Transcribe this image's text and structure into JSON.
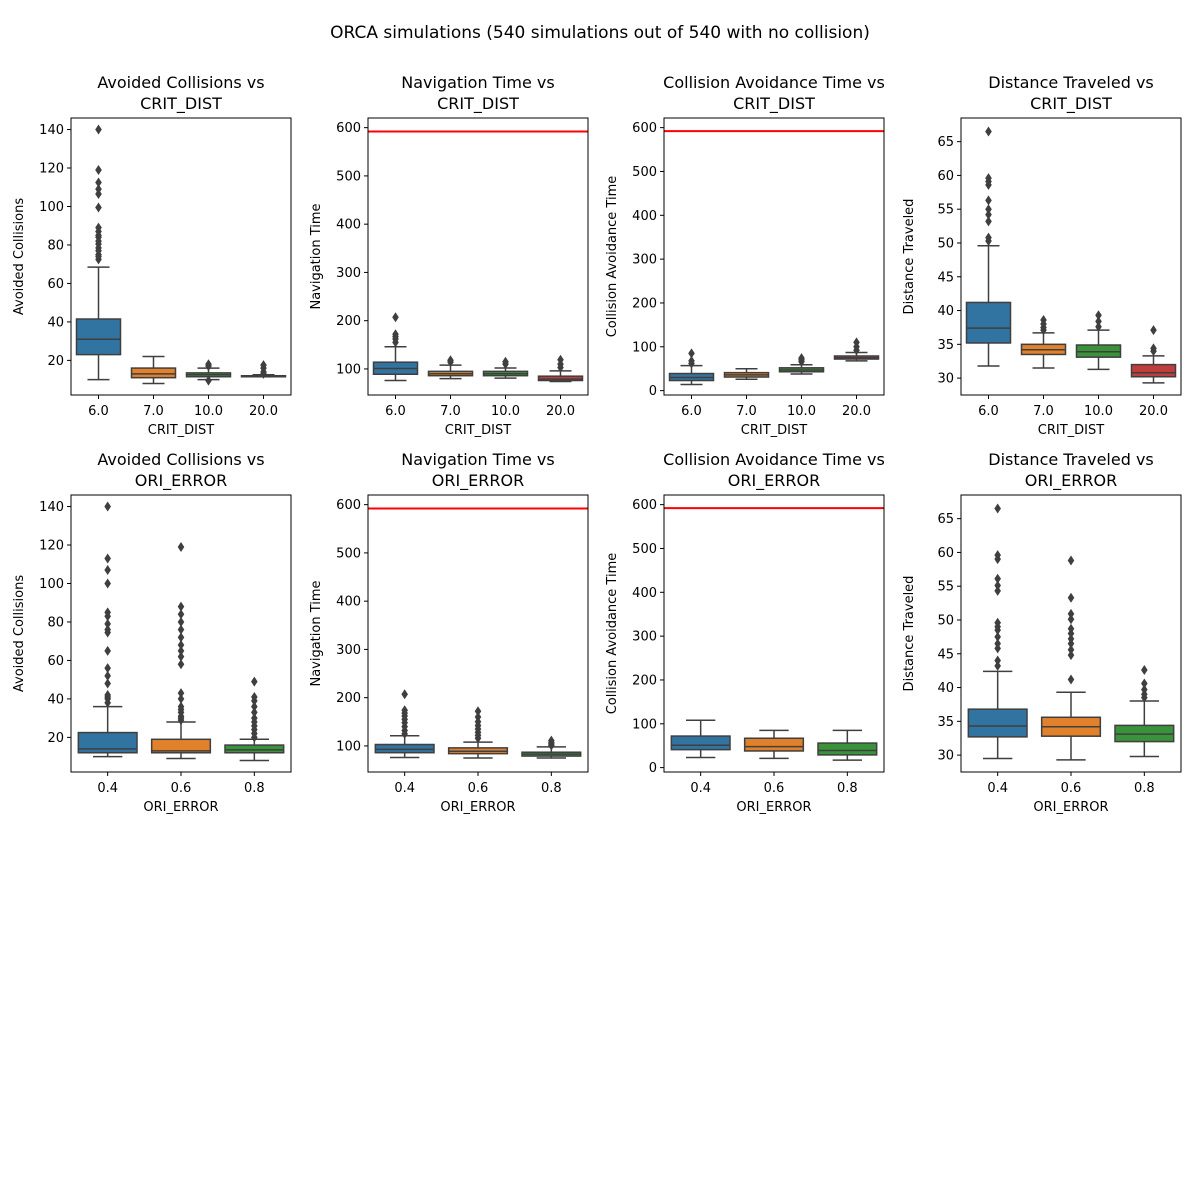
{
  "figure": {
    "suptitle": "ORCA simulations (540 simulations out of 540 with no collision)"
  },
  "colors": {
    "series": [
      "#3274a1",
      "#e1812c",
      "#3a923a",
      "#c03d3e"
    ],
    "box_edge": "#3f3f3f",
    "reference_line": "#ff0000"
  },
  "chart_data": [
    {
      "type": "box",
      "title": [
        "Avoided Collisions vs",
        "CRIT_DIST"
      ],
      "xlabel": "CRIT_DIST",
      "ylabel": "Avoided Collisions",
      "categories": [
        "6.0",
        "7.0",
        "10.0",
        "20.0"
      ],
      "ylim": [
        2,
        146
      ],
      "yticks": [
        20,
        40,
        60,
        80,
        100,
        120,
        140
      ],
      "reference_line": null,
      "boxes": [
        {
          "whislo": 10,
          "q1": 23,
          "med": 31,
          "q3": 41.5,
          "whishi": 68.5,
          "fliers": [
            72.5,
            74,
            75,
            77,
            78.5,
            80.5,
            82,
            84,
            85,
            87,
            89,
            99.5,
            106.5,
            109,
            112.5,
            119,
            140
          ]
        },
        {
          "whislo": 8,
          "q1": 11,
          "med": 13,
          "q3": 16,
          "whishi": 22,
          "fliers": []
        },
        {
          "whislo": 10,
          "q1": 11.5,
          "med": 12.5,
          "q3": 13.5,
          "whishi": 16,
          "fliers": [
            9.5,
            17,
            18
          ]
        },
        {
          "whislo": 11.5,
          "q1": 12,
          "med": 12,
          "q3": 12,
          "whishi": 12.5,
          "fliers": [
            13,
            14,
            16,
            17.5
          ]
        }
      ]
    },
    {
      "type": "box",
      "title": [
        "Navigation Time vs",
        "CRIT_DIST"
      ],
      "xlabel": "CRIT_DIST",
      "ylabel": "Navigation Time",
      "categories": [
        "6.0",
        "7.0",
        "10.0",
        "20.0"
      ],
      "ylim": [
        46,
        620
      ],
      "yticks": [
        100,
        200,
        300,
        400,
        500,
        600
      ],
      "reference_line": 592,
      "boxes": [
        {
          "whislo": 76,
          "q1": 89,
          "med": 101,
          "q3": 114,
          "whishi": 146,
          "fliers": [
            155,
            162,
            167,
            172,
            207
          ]
        },
        {
          "whislo": 80,
          "q1": 86,
          "med": 90,
          "q3": 95,
          "whishi": 108,
          "fliers": [
            114,
            118
          ]
        },
        {
          "whislo": 81,
          "q1": 86,
          "med": 90,
          "q3": 95,
          "whishi": 102,
          "fliers": [
            110,
            115
          ]
        },
        {
          "whislo": 74,
          "q1": 76,
          "med": 79,
          "q3": 85,
          "whishi": 96,
          "fliers": [
            103,
            110,
            119
          ]
        }
      ]
    },
    {
      "type": "box",
      "title": [
        "Collision Avoidance Time vs",
        "CRIT_DIST"
      ],
      "xlabel": "CRIT_DIST",
      "ylabel": "Collision Avoidance Time",
      "categories": [
        "6.0",
        "7.0",
        "10.0",
        "20.0"
      ],
      "ylim": [
        -10,
        622
      ],
      "yticks": [
        0,
        100,
        200,
        300,
        400,
        500,
        600
      ],
      "reference_line": 592,
      "boxes": [
        {
          "whislo": 14,
          "q1": 23,
          "med": 30,
          "q3": 39,
          "whishi": 57,
          "fliers": [
            62,
            68,
            85
          ]
        },
        {
          "whislo": 26,
          "q1": 31,
          "med": 36,
          "q3": 41,
          "whishi": 50,
          "fliers": []
        },
        {
          "whislo": 38,
          "q1": 43,
          "med": 47,
          "q3": 52,
          "whishi": 59,
          "fliers": [
            66,
            70,
            74
          ]
        },
        {
          "whislo": 68,
          "q1": 72,
          "med": 75,
          "q3": 79,
          "whishi": 87,
          "fliers": [
            92,
            100,
            110
          ]
        }
      ]
    },
    {
      "type": "box",
      "title": [
        "Distance Traveled vs",
        "CRIT_DIST"
      ],
      "xlabel": "CRIT_DIST",
      "ylabel": "Distance Traveled",
      "categories": [
        "6.0",
        "7.0",
        "10.0",
        "20.0"
      ],
      "ylim": [
        27.5,
        68.5
      ],
      "yticks": [
        30,
        35,
        40,
        45,
        50,
        55,
        60,
        65
      ],
      "reference_line": null,
      "boxes": [
        {
          "whislo": 31.8,
          "q1": 35.2,
          "med": 37.4,
          "q3": 41.2,
          "whishi": 49.6,
          "fliers": [
            50.3,
            50.8,
            53.2,
            54.2,
            55,
            56.3,
            58.6,
            59.1,
            59.6,
            66.5
          ]
        },
        {
          "whislo": 31.5,
          "q1": 33.5,
          "med": 34.2,
          "q3": 35,
          "whishi": 36.7,
          "fliers": [
            37.1,
            37.5,
            38,
            38.6
          ]
        },
        {
          "whislo": 31.3,
          "q1": 33.1,
          "med": 33.9,
          "q3": 34.9,
          "whishi": 37.1,
          "fliers": [
            37.6,
            38.4,
            39.3
          ]
        },
        {
          "whislo": 29.3,
          "q1": 30.2,
          "med": 30.8,
          "q3": 32,
          "whishi": 33.3,
          "fliers": [
            34,
            34.4,
            37.1
          ]
        }
      ]
    },
    {
      "type": "box",
      "title": [
        "Avoided Collisions vs",
        "ORI_ERROR"
      ],
      "xlabel": "ORI_ERROR",
      "ylabel": "Avoided Collisions",
      "categories": [
        "0.4",
        "0.6",
        "0.8"
      ],
      "ylim": [
        2,
        146
      ],
      "yticks": [
        20,
        40,
        60,
        80,
        100,
        120,
        140
      ],
      "reference_line": null,
      "boxes": [
        {
          "whislo": 10,
          "q1": 12,
          "med": 14,
          "q3": 22.5,
          "whishi": 36,
          "fliers": [
            38,
            40,
            41,
            42,
            48,
            52,
            56,
            65,
            74.5,
            76,
            79,
            83,
            85,
            100,
            107,
            113,
            140
          ]
        },
        {
          "whislo": 9,
          "q1": 12,
          "med": 13,
          "q3": 19,
          "whishi": 28,
          "fliers": [
            29,
            30,
            31,
            33,
            34.5,
            36,
            40,
            43,
            58,
            62,
            65,
            68,
            72,
            76,
            80,
            84,
            88,
            119
          ]
        },
        {
          "whislo": 8,
          "q1": 12,
          "med": 13.5,
          "q3": 16,
          "whishi": 19,
          "fliers": [
            20,
            22,
            24,
            26,
            28,
            30,
            33,
            36,
            39,
            41,
            49
          ]
        }
      ]
    },
    {
      "type": "box",
      "title": [
        "Navigation Time vs",
        "ORI_ERROR"
      ],
      "xlabel": "ORI_ERROR",
      "ylabel": "Navigation Time",
      "categories": [
        "0.4",
        "0.6",
        "0.8"
      ],
      "ylim": [
        46,
        620
      ],
      "yticks": [
        100,
        200,
        300,
        400,
        500,
        600
      ],
      "reference_line": 592,
      "boxes": [
        {
          "whislo": 76,
          "q1": 86,
          "med": 93,
          "q3": 103,
          "whishi": 121,
          "fliers": [
            125,
            132,
            140,
            148,
            155,
            162,
            168,
            174,
            207
          ]
        },
        {
          "whislo": 75,
          "q1": 84,
          "med": 89,
          "q3": 96,
          "whishi": 108,
          "fliers": [
            116,
            122,
            128,
            135,
            142,
            150,
            160,
            172
          ]
        },
        {
          "whislo": 75,
          "q1": 79,
          "med": 83,
          "q3": 87,
          "whishi": 98,
          "fliers": [
            101,
            104,
            107,
            111
          ]
        }
      ]
    },
    {
      "type": "box",
      "title": [
        "Collision Avoidance Time vs",
        "ORI_ERROR"
      ],
      "xlabel": "ORI_ERROR",
      "ylabel": "Collision Avoidance Time",
      "categories": [
        "0.4",
        "0.6",
        "0.8"
      ],
      "ylim": [
        -10,
        622
      ],
      "yticks": [
        0,
        100,
        200,
        300,
        400,
        500,
        600
      ],
      "reference_line": 592,
      "boxes": [
        {
          "whislo": 23,
          "q1": 41,
          "med": 51,
          "q3": 72,
          "whishi": 108,
          "fliers": []
        },
        {
          "whislo": 21,
          "q1": 38,
          "med": 48,
          "q3": 67,
          "whishi": 85,
          "fliers": []
        },
        {
          "whislo": 17,
          "q1": 29,
          "med": 39,
          "q3": 56,
          "whishi": 85,
          "fliers": []
        }
      ]
    },
    {
      "type": "box",
      "title": [
        "Distance Traveled vs",
        "ORI_ERROR"
      ],
      "xlabel": "ORI_ERROR",
      "ylabel": "Distance Traveled",
      "categories": [
        "0.4",
        "0.6",
        "0.8"
      ],
      "ylim": [
        27.5,
        68.5
      ],
      "yticks": [
        30,
        35,
        40,
        45,
        50,
        55,
        60,
        65
      ],
      "reference_line": null,
      "boxes": [
        {
          "whislo": 29.5,
          "q1": 32.7,
          "med": 34.3,
          "q3": 36.8,
          "whishi": 42.4,
          "fliers": [
            43.2,
            44,
            45.8,
            46.5,
            47.5,
            48.5,
            49,
            49.6,
            54.3,
            55.1,
            56.1,
            59,
            59.6,
            66.5
          ]
        },
        {
          "whislo": 29.3,
          "q1": 32.8,
          "med": 34.2,
          "q3": 35.6,
          "whishi": 39.3,
          "fliers": [
            41.2,
            44.8,
            45.6,
            46.5,
            47.2,
            48,
            48.7,
            50.1,
            50.9,
            53.3,
            58.8
          ]
        },
        {
          "whislo": 29.8,
          "q1": 32,
          "med": 33.1,
          "q3": 34.4,
          "whishi": 38,
          "fliers": [
            38.5,
            39,
            39.7,
            40.6,
            42.6
          ]
        }
      ]
    }
  ]
}
